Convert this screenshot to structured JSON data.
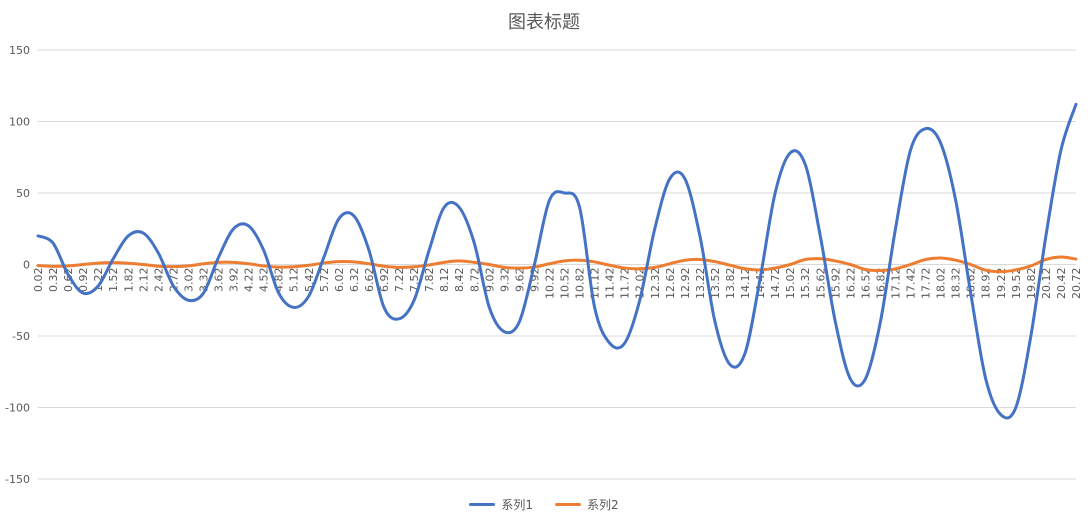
{
  "chart_data": {
    "type": "line",
    "title": "图表标题",
    "xlabel": "",
    "ylabel": "",
    "ylim": [
      -150,
      150
    ],
    "yticks": [
      150,
      100,
      50,
      0,
      -50,
      -100,
      -150
    ],
    "grid": true,
    "legend_position": "bottom",
    "categories": [
      "0.02",
      "0.32",
      "0.62",
      "0.92",
      "1.22",
      "1.52",
      "1.82",
      "2.12",
      "2.42",
      "2.72",
      "3.02",
      "3.32",
      "3.62",
      "3.92",
      "4.22",
      "4.52",
      "4.82",
      "5.12",
      "5.42",
      "5.72",
      "6.02",
      "6.32",
      "6.62",
      "6.92",
      "7.22",
      "7.52",
      "7.82",
      "8.12",
      "8.42",
      "8.72",
      "9.02",
      "9.32",
      "9.62",
      "9.92",
      "10.22",
      "10.52",
      "10.82",
      "11.12",
      "11.42",
      "11.72",
      "12.02",
      "12.32",
      "12.62",
      "12.92",
      "13.22",
      "13.52",
      "13.82",
      "14.12",
      "14.42",
      "14.72",
      "15.02",
      "15.32",
      "15.62",
      "15.92",
      "16.22",
      "16.52",
      "16.82",
      "17.12",
      "17.42",
      "17.72",
      "18.02",
      "18.32",
      "18.62",
      "18.92",
      "19.22",
      "19.52",
      "19.82",
      "20.12",
      "20.42",
      "20.72"
    ],
    "x": [
      0.02,
      0.32,
      0.62,
      0.92,
      1.22,
      1.52,
      1.82,
      2.12,
      2.42,
      2.72,
      3.02,
      3.32,
      3.62,
      3.92,
      4.22,
      4.52,
      4.82,
      5.12,
      5.42,
      5.72,
      6.02,
      6.32,
      6.62,
      6.92,
      7.22,
      7.52,
      7.82,
      8.12,
      8.42,
      8.72,
      9.02,
      9.32,
      9.62,
      9.92,
      10.22,
      10.52,
      10.82,
      11.12,
      11.42,
      11.72,
      12.02,
      12.32,
      12.62,
      12.92,
      13.22,
      13.52,
      13.82,
      14.12,
      14.42,
      14.72,
      15.02,
      15.32,
      15.62,
      15.92,
      16.22,
      16.52,
      16.82,
      17.12,
      17.42,
      17.72,
      18.02,
      18.32,
      18.62,
      18.92,
      19.22,
      19.52,
      19.82,
      20.12,
      20.42,
      20.72
    ],
    "series": [
      {
        "name": "系列1",
        "color": "#4472C4",
        "values": [
          20,
          15,
          -7,
          -20,
          -15,
          4,
          20,
          22,
          8,
          -15,
          -25,
          -20,
          5,
          25,
          27,
          10,
          -20,
          -30,
          -22,
          5,
          32,
          34,
          10,
          -30,
          -38,
          -25,
          10,
          40,
          40,
          15,
          -30,
          -47,
          -40,
          0,
          45,
          50,
          40,
          -30,
          -55,
          -55,
          -25,
          25,
          60,
          60,
          20,
          -40,
          -70,
          -62,
          -10,
          50,
          78,
          70,
          20,
          -40,
          -80,
          -80,
          -40,
          25,
          80,
          95,
          85,
          45,
          -20,
          -80,
          -105,
          -100,
          -50,
          20,
          80,
          112
        ]
      },
      {
        "name": "系列2",
        "color": "#ED7D31",
        "values": [
          -0.8,
          -1.3,
          -1.0,
          0,
          1.0,
          1.3,
          0.9,
          0,
          -1.2,
          -1.5,
          -1.0,
          0.5,
          1.5,
          1.5,
          0.5,
          -1,
          -1.8,
          -1.6,
          -0.5,
          1,
          2,
          1.8,
          0.5,
          -1.2,
          -2,
          -1.6,
          -0.3,
          1.5,
          2.5,
          1.5,
          0,
          -2,
          -2.5,
          -1.8,
          0.5,
          2.5,
          3,
          1.8,
          -0.5,
          -2.5,
          -3,
          -2,
          0.5,
          3,
          3.5,
          2,
          -0.5,
          -3,
          -3.8,
          -2.5,
          0,
          3.5,
          4,
          2.5,
          0,
          -3.5,
          -4.2,
          -3,
          0,
          3.5,
          4.5,
          3,
          0,
          -4,
          -5,
          -3.8,
          -1,
          3.5,
          5.2,
          3.8
        ]
      }
    ]
  }
}
